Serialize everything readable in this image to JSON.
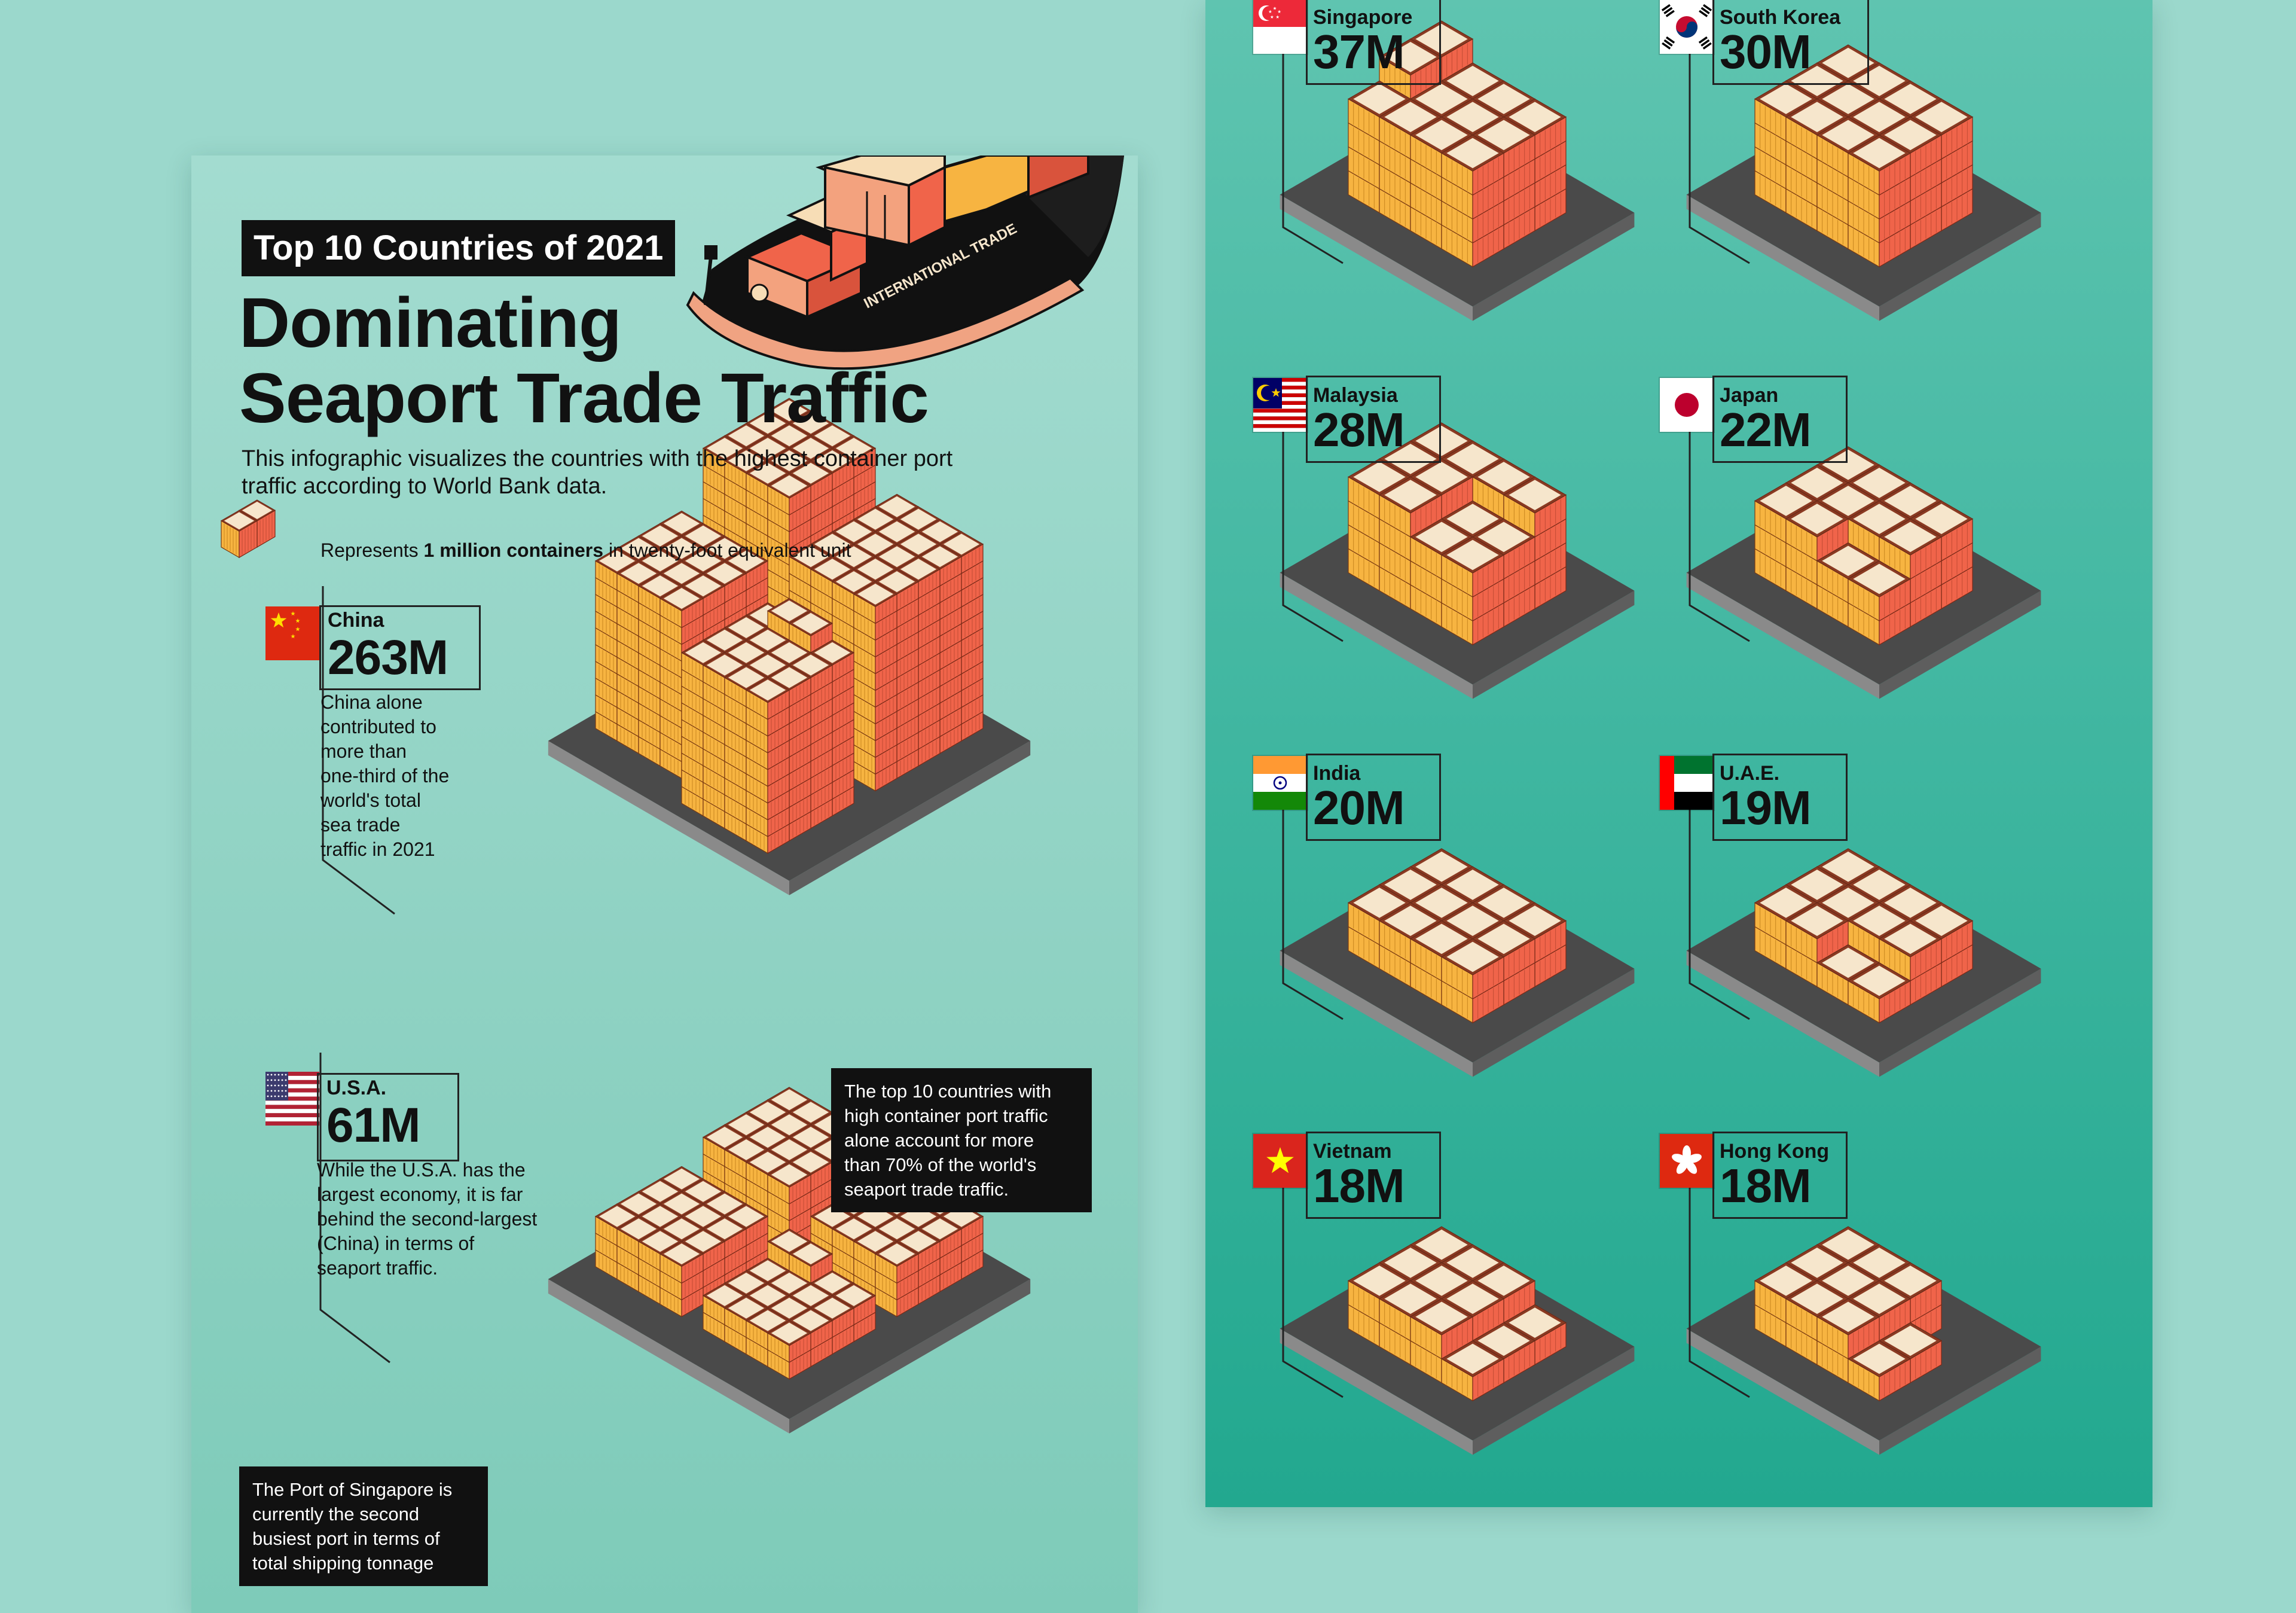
{
  "header": {
    "tag": "Top 10 Countries of 2021",
    "title_line1": "Dominating",
    "title_line2": "Seaport Trade Traffic",
    "intro_line1": "This infographic visualizes the countries with the highest container port",
    "intro_line2": "traffic according to World Bank data."
  },
  "ship": {
    "hull_text": "INTERNATIONAL TRADE"
  },
  "legend": {
    "prefix": "Represents ",
    "bold": "1 million containers",
    "suffix": " in twenty-foot equivalent unit"
  },
  "notes": {
    "china": [
      "China alone",
      "contributed to",
      "more than",
      "one-third of the",
      "world's total",
      "sea trade",
      "traffic in 2021"
    ],
    "usa": [
      "While the U.S.A. has the",
      "largest economy, it is far",
      "behind the second-largest",
      "(China) in terms of",
      "seaport traffic."
    ]
  },
  "callouts": {
    "top10": [
      "The top 10 countries with",
      "high container port traffic",
      "alone account for more",
      "than 70% of the world's",
      "seaport trade traffic."
    ],
    "singapore": [
      "The Port of Singapore is",
      "currently the second",
      "busiest port in terms of",
      "total shipping tonnage"
    ]
  },
  "colors": {
    "container_side": "#f0644a",
    "container_face": "#f7b441",
    "container_top": "#f6e6cc",
    "platform_top": "#4a4a4a",
    "platform_side": "#7a7a7a",
    "ink": "#111111"
  },
  "chart_data": {
    "type": "bar",
    "unit": "1 million containers in twenty-foot equivalent unit",
    "categories": [
      "China",
      "U.S.A.",
      "Singapore",
      "South Korea",
      "Malaysia",
      "Japan",
      "India",
      "U.A.E.",
      "Vietnam",
      "Hong Kong"
    ],
    "values": [
      263,
      61,
      37,
      30,
      28,
      22,
      20,
      19,
      18,
      18
    ],
    "labels": [
      "263M",
      "61M",
      "37M",
      "30M",
      "28M",
      "22M",
      "20M",
      "19M",
      "18M",
      "18M"
    ],
    "flag_icons": [
      "china-flag-icon",
      "usa-flag-icon",
      "singapore-flag-icon",
      "south-korea-flag-icon",
      "malaysia-flag-icon",
      "japan-flag-icon",
      "india-flag-icon",
      "uae-flag-icon",
      "vietnam-flag-icon",
      "hong-kong-flag-icon"
    ]
  }
}
